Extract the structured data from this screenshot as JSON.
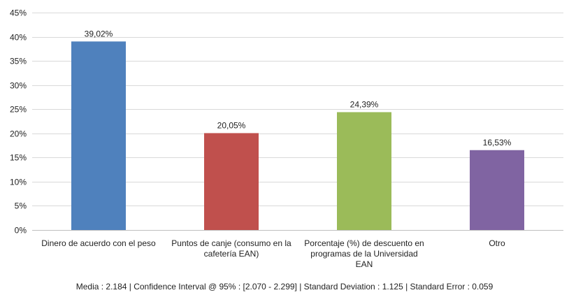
{
  "chart_data": {
    "type": "bar",
    "categories": [
      [
        "Dinero de acuerdo con el peso"
      ],
      [
        "Puntos de canje (consumo en la",
        "cafetería EAN)"
      ],
      [
        "Porcentaje (%) de descuento en",
        "programas de la Universidad",
        "EAN"
      ],
      [
        "Otro"
      ]
    ],
    "values": [
      39.02,
      20.05,
      24.39,
      16.53
    ],
    "data_labels": [
      "39,02%",
      "20,05%",
      "24,39%",
      "16,53%"
    ],
    "colors": [
      "#4F81BD",
      "#C0504D",
      "#9BBB59",
      "#8064A2"
    ],
    "ylim": [
      0,
      45
    ],
    "yticks": [
      0,
      5,
      10,
      15,
      20,
      25,
      30,
      35,
      40,
      45
    ],
    "ytick_labels": [
      "0%",
      "5%",
      "10%",
      "15%",
      "20%",
      "25%",
      "30%",
      "35%",
      "40%",
      "45%"
    ],
    "grid": true,
    "legend": "none"
  },
  "footer": "Media : 2.184  |  Confidence Interval @ 95% : [2.070 - 2.299]  |  Standard Deviation : 1.125  |  Standard Error : 0.059"
}
